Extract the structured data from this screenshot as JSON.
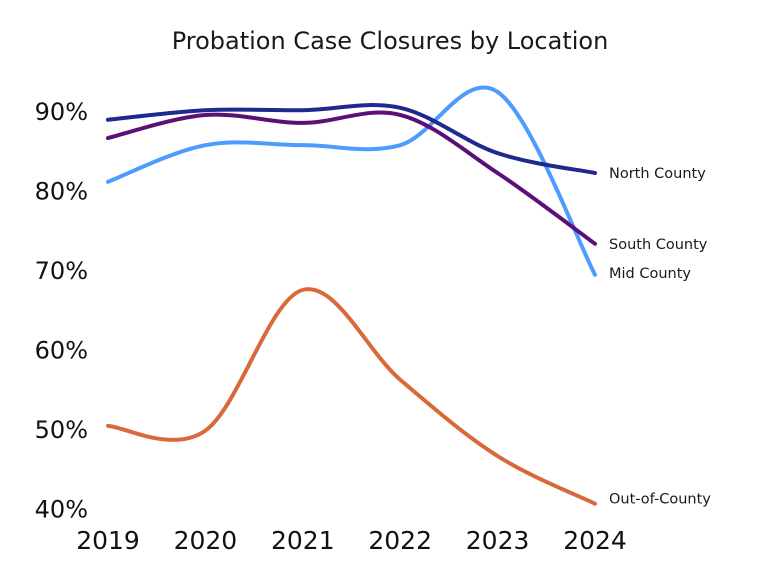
{
  "chart_data": {
    "type": "line",
    "title": "Probation Case Closures by Location",
    "xlabel": "",
    "ylabel": "",
    "categories": [
      "2019",
      "2020",
      "2021",
      "2022",
      "2023",
      "2024"
    ],
    "ylim": [
      40,
      90
    ],
    "yticks": [
      90,
      80,
      70,
      60,
      50,
      40
    ],
    "ytick_labels": [
      "90%",
      "80%",
      "70%",
      "60%",
      "50%",
      "40%"
    ],
    "grid": false,
    "legend": "direct labels at line ends (right)",
    "smooth": true,
    "series": [
      {
        "name": "North County",
        "color": "#1f2a8f",
        "values": [
          88.9,
          90.1,
          90.1,
          90.4,
          84.7,
          82.2
        ]
      },
      {
        "name": "South County",
        "color": "#5c0f78",
        "values": [
          86.6,
          89.5,
          88.5,
          89.5,
          82.2,
          73.3
        ]
      },
      {
        "name": "Mid County",
        "color": "#4d9bff",
        "values": [
          81.1,
          85.7,
          85.7,
          85.7,
          92.4,
          69.4
        ]
      },
      {
        "name": "Out-of-County",
        "color": "#d9693a",
        "values": [
          50.4,
          49.8,
          67.5,
          56.2,
          46.6,
          40.6
        ]
      }
    ]
  }
}
